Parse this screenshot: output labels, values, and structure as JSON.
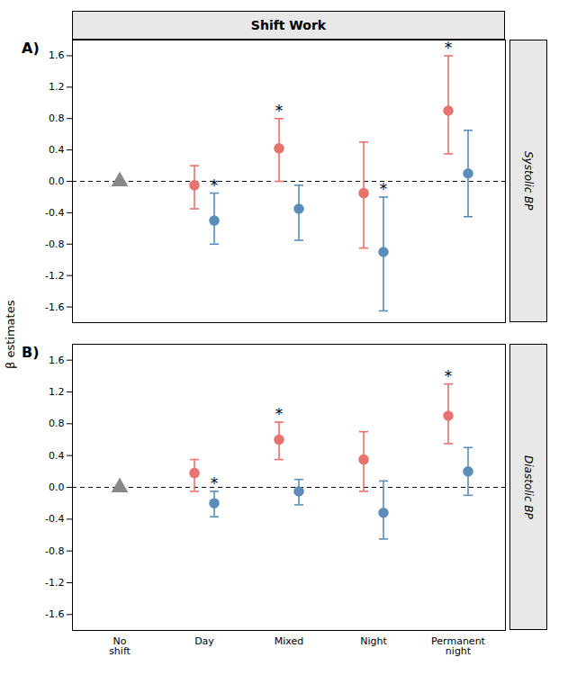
{
  "chart_data": [
    {
      "type": "scatter",
      "title": "Shift Work",
      "ylabel": "β estimates",
      "panel_label": "A)",
      "side_label": "Systolic BP",
      "categories": [
        "No\nshift",
        "Day",
        "Mixed",
        "Night",
        "Permanent\nnight"
      ],
      "tick_labels": "y",
      "ylim": [
        -1.8,
        1.8
      ],
      "yticks": [
        -1.6,
        -1.2,
        -0.8,
        -0.4,
        {
          "value": 0,
          "label": "0.0"
        },
        0.4,
        0.8,
        1.2,
        1.6
      ],
      "grid": false,
      "reference_line": {
        "y": 0,
        "line_style": "dashed"
      },
      "series": [
        {
          "color": "#888888",
          "marker": "triangle",
          "values": [
            0,
            null,
            null,
            null,
            null
          ]
        },
        {
          "color": "#E8726D",
          "marker": "circle",
          "values": [
            null,
            -0.05,
            0.42,
            -0.15,
            0.9
          ],
          "ci_low": [
            null,
            -0.35,
            0.0,
            -0.85,
            0.35
          ],
          "ci_high": [
            null,
            0.2,
            0.8,
            0.5,
            1.6
          ],
          "significance": [
            null,
            null,
            "*",
            null,
            "*"
          ]
        },
        {
          "color": "#5B8DB8",
          "marker": "circle",
          "values": [
            null,
            -0.5,
            -0.35,
            -0.9,
            0.1
          ],
          "ci_low": [
            null,
            -0.8,
            -0.75,
            -1.65,
            -0.45
          ],
          "ci_high": [
            null,
            -0.15,
            -0.05,
            -0.2,
            0.65
          ],
          "significance": [
            null,
            "*",
            null,
            "*",
            null
          ]
        }
      ]
    },
    {
      "type": "scatter",
      "panel_label": "B)",
      "side_label": "Diastolic BP",
      "categories": [
        "No\nshift",
        "Day",
        "Mixed",
        "Night",
        "Permanent\nnight"
      ],
      "ylim": [
        -1.8,
        1.8
      ],
      "yticks": [
        -1.6,
        -1.2,
        -0.8,
        -0.4,
        {
          "value": 0,
          "label": "0.0"
        },
        0.4,
        0.8,
        1.2,
        1.6
      ],
      "grid": false,
      "reference_line": {
        "y": 0,
        "line_style": "dashed"
      },
      "series": [
        {
          "color": "#888888",
          "marker": "triangle",
          "values": [
            0,
            null,
            null,
            null,
            null
          ]
        },
        {
          "color": "#E8726D",
          "marker": "circle",
          "values": [
            null,
            0.18,
            0.6,
            0.35,
            0.9
          ],
          "ci_low": [
            null,
            -0.05,
            0.35,
            -0.05,
            0.55
          ],
          "ci_high": [
            null,
            0.35,
            0.82,
            0.7,
            1.3
          ],
          "significance": [
            null,
            null,
            "*",
            null,
            "*"
          ]
        },
        {
          "color": "#5B8DB8",
          "marker": "circle",
          "values": [
            null,
            -0.2,
            -0.05,
            -0.32,
            0.2
          ],
          "ci_low": [
            null,
            -0.37,
            -0.22,
            -0.65,
            -0.1
          ],
          "ci_high": [
            null,
            -0.05,
            0.1,
            0.08,
            0.5
          ],
          "significance": [
            null,
            "*",
            null,
            null,
            null
          ]
        }
      ]
    }
  ]
}
